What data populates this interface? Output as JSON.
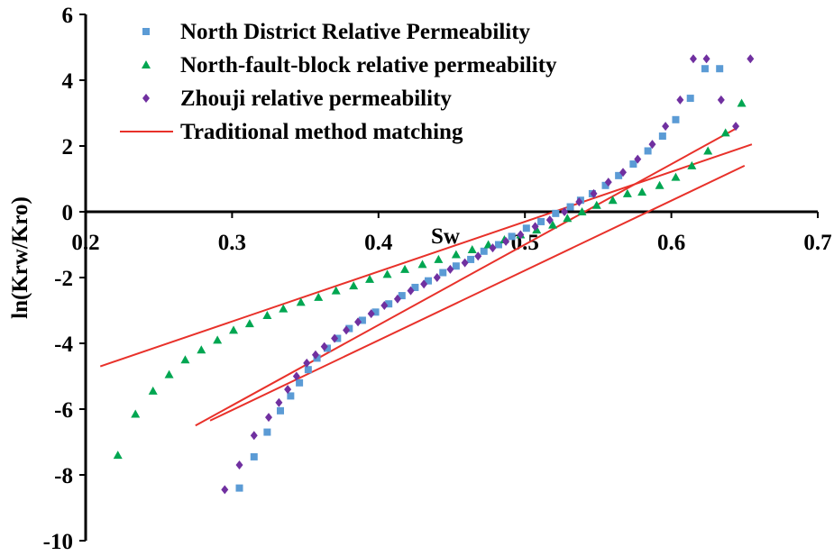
{
  "chart_data": {
    "type": "scatter",
    "title": "",
    "xlabel": "Sw",
    "ylabel": "ln(Krw/Kro)",
    "xlim": [
      0.2,
      0.7
    ],
    "ylim": [
      -10,
      6
    ],
    "x_ticks": [
      0.2,
      0.3,
      0.4,
      0.5,
      0.6,
      0.7
    ],
    "x_tick_labels": [
      "0.2",
      "0.3",
      "0.4",
      "0.5",
      "0.6",
      "0.7"
    ],
    "y_ticks": [
      -10,
      -8,
      -6,
      -4,
      -2,
      0,
      2,
      4,
      6
    ],
    "y_tick_labels": [
      "-10",
      "-8",
      "-6",
      "-4",
      "-2",
      "0",
      "2",
      "4",
      "6"
    ],
    "legend_position": "top-left",
    "series": [
      {
        "name": "North District Relative Permeability",
        "marker": "square",
        "color": "#5B9BD5",
        "x": [
          0.305,
          0.315,
          0.324,
          0.333,
          0.34,
          0.346,
          0.352,
          0.358,
          0.365,
          0.372,
          0.38,
          0.389,
          0.398,
          0.407,
          0.416,
          0.425,
          0.434,
          0.444,
          0.453,
          0.463,
          0.472,
          0.482,
          0.491,
          0.501,
          0.511,
          0.521,
          0.531,
          0.538,
          0.546,
          0.555,
          0.564,
          0.574,
          0.584,
          0.594,
          0.603,
          0.613,
          0.623,
          0.633
        ],
        "y": [
          -8.4,
          -7.45,
          -6.7,
          -6.05,
          -5.6,
          -5.2,
          -4.8,
          -4.45,
          -4.15,
          -3.85,
          -3.55,
          -3.3,
          -3.05,
          -2.8,
          -2.55,
          -2.3,
          -2.1,
          -1.85,
          -1.65,
          -1.45,
          -1.2,
          -1.0,
          -0.75,
          -0.5,
          -0.3,
          -0.05,
          0.15,
          0.35,
          0.55,
          0.8,
          1.1,
          1.45,
          1.85,
          2.3,
          2.8,
          3.45,
          4.35,
          4.35
        ]
      },
      {
        "name": "North-fault-block relative permeability",
        "marker": "triangle",
        "color": "#00A651",
        "x": [
          0.222,
          0.234,
          0.246,
          0.257,
          0.268,
          0.279,
          0.29,
          0.301,
          0.312,
          0.324,
          0.335,
          0.347,
          0.359,
          0.371,
          0.383,
          0.394,
          0.406,
          0.418,
          0.43,
          0.441,
          0.453,
          0.464,
          0.475,
          0.486,
          0.497,
          0.508,
          0.519,
          0.529,
          0.539,
          0.549,
          0.56,
          0.57,
          0.58,
          0.592,
          0.603,
          0.614,
          0.625,
          0.637,
          0.648
        ],
        "y": [
          -7.4,
          -6.15,
          -5.45,
          -4.95,
          -4.5,
          -4.2,
          -3.9,
          -3.6,
          -3.4,
          -3.15,
          -2.95,
          -2.75,
          -2.6,
          -2.4,
          -2.25,
          -2.05,
          -1.9,
          -1.75,
          -1.6,
          -1.45,
          -1.3,
          -1.15,
          -1.0,
          -0.85,
          -0.7,
          -0.55,
          -0.4,
          -0.2,
          0.0,
          0.2,
          0.35,
          0.55,
          0.6,
          0.8,
          1.05,
          1.4,
          1.85,
          2.4,
          3.3
        ]
      },
      {
        "name": "Zhouji relative permeability",
        "marker": "diamond",
        "color": "#7030A0",
        "x": [
          0.295,
          0.305,
          0.315,
          0.325,
          0.332,
          0.338,
          0.344,
          0.351,
          0.357,
          0.363,
          0.37,
          0.378,
          0.386,
          0.395,
          0.404,
          0.413,
          0.422,
          0.431,
          0.44,
          0.449,
          0.459,
          0.468,
          0.478,
          0.487,
          0.497,
          0.507,
          0.517,
          0.527,
          0.537,
          0.547,
          0.557,
          0.567,
          0.577,
          0.587,
          0.596,
          0.606,
          0.615,
          0.624,
          0.634,
          0.644,
          0.654
        ],
        "y": [
          -8.45,
          -7.7,
          -6.8,
          -6.25,
          -5.8,
          -5.4,
          -5.0,
          -4.6,
          -4.35,
          -4.1,
          -3.85,
          -3.6,
          -3.35,
          -3.1,
          -2.85,
          -2.65,
          -2.4,
          -2.2,
          -2.0,
          -1.75,
          -1.55,
          -1.35,
          -1.1,
          -0.9,
          -0.7,
          -0.45,
          -0.25,
          0.0,
          0.3,
          0.55,
          0.9,
          1.2,
          1.6,
          2.05,
          2.6,
          3.4,
          4.65,
          4.65,
          3.4,
          2.6,
          4.65
        ]
      }
    ],
    "fit_lines": {
      "name": "Traditional method matching",
      "color": "#E8312A",
      "lines": [
        {
          "x": [
            0.21,
            0.655
          ],
          "y": [
            -4.7,
            2.05
          ]
        },
        {
          "x": [
            0.275,
            0.645
          ],
          "y": [
            -6.5,
            2.55
          ]
        },
        {
          "x": [
            0.285,
            0.65
          ],
          "y": [
            -6.35,
            1.4
          ]
        }
      ]
    }
  }
}
